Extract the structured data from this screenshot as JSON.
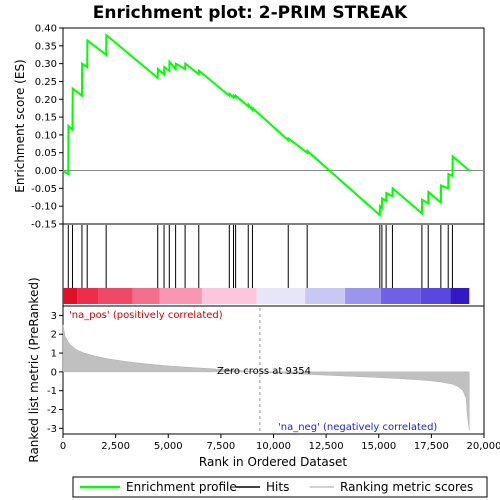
{
  "chart_data": {
    "type": "line",
    "title": "Enrichment plot: 2-PRIM STREAK",
    "es_panel": {
      "ylabel": "Enrichment score (ES)",
      "ylim": [
        -0.15,
        0.4
      ],
      "yticks": [
        "0.40",
        "0.35",
        "0.30",
        "0.25",
        "0.20",
        "0.15",
        "0.10",
        "0.05",
        "0.00",
        "-0.05",
        "-0.10",
        "-0.15"
      ],
      "ytick_values": [
        0.4,
        0.35,
        0.3,
        0.25,
        0.2,
        0.15,
        0.1,
        0.05,
        0.0,
        -0.05,
        -0.1,
        -0.15
      ],
      "line_color": "#00ff00",
      "series": [
        {
          "name": "Enrichment profile",
          "x": [
            0,
            250,
            260,
            450,
            460,
            900,
            910,
            1150,
            1160,
            2050,
            2060,
            4500,
            4510,
            4800,
            4810,
            5050,
            5060,
            5350,
            5360,
            5800,
            5810,
            6450,
            6460,
            7900,
            7910,
            8100,
            8110,
            8200,
            8210,
            8800,
            8810,
            9000,
            9010,
            10700,
            10710,
            11600,
            11610,
            15050,
            15060,
            15150,
            15160,
            15350,
            15360,
            15650,
            15660,
            17050,
            17060,
            17350,
            17360,
            17950,
            17960,
            18300,
            18310,
            18500,
            18510,
            19300
          ],
          "y": [
            0.0,
            -0.01,
            0.125,
            0.115,
            0.23,
            0.21,
            0.3,
            0.29,
            0.365,
            0.325,
            0.38,
            0.26,
            0.285,
            0.27,
            0.29,
            0.28,
            0.305,
            0.285,
            0.3,
            0.285,
            0.3,
            0.27,
            0.28,
            0.21,
            0.215,
            0.205,
            0.21,
            0.205,
            0.21,
            0.18,
            0.185,
            0.17,
            0.175,
            0.085,
            0.09,
            0.05,
            0.055,
            -0.125,
            -0.1,
            -0.105,
            -0.078,
            -0.085,
            -0.063,
            -0.072,
            -0.05,
            -0.12,
            -0.082,
            -0.092,
            -0.06,
            -0.09,
            -0.042,
            -0.05,
            -0.01,
            -0.015,
            0.04,
            0.0
          ]
        }
      ]
    },
    "hits": [
      250,
      450,
      900,
      1150,
      2050,
      4500,
      4800,
      5050,
      5350,
      5800,
      6450,
      7900,
      8100,
      8200,
      8800,
      9000,
      10700,
      11600,
      15050,
      15150,
      15350,
      15650,
      17050,
      17350,
      17950,
      18300,
      18500
    ],
    "metric_panel": {
      "ylabel": "Ranked list metric (PreRanked)",
      "ylim": [
        -3.3,
        3.5
      ],
      "yticks": [
        "3",
        "2",
        "1",
        "0",
        "-1",
        "-2",
        "-3"
      ],
      "ytick_values": [
        3,
        2,
        1,
        0,
        -1,
        -2,
        -3
      ],
      "fill_color": "#c0c0c0",
      "profile": {
        "x": [
          0,
          100,
          300,
          600,
          1000,
          1500,
          2000,
          3000,
          4000,
          5000,
          6000,
          7000,
          8000,
          9000,
          9354,
          10000,
          11000,
          12000,
          13000,
          14000,
          15000,
          16000,
          17000,
          17500,
          18000,
          18500,
          18800,
          19000,
          19150,
          19200,
          19300
        ],
        "y": [
          2.5,
          1.9,
          1.5,
          1.2,
          1.0,
          0.85,
          0.72,
          0.55,
          0.42,
          0.32,
          0.24,
          0.17,
          0.1,
          0.03,
          0.0,
          -0.05,
          -0.1,
          -0.15,
          -0.2,
          -0.25,
          -0.3,
          -0.36,
          -0.43,
          -0.48,
          -0.55,
          -0.65,
          -0.8,
          -1.0,
          -1.4,
          -2.2,
          -3.1
        ]
      },
      "zero_cross_label": "Zero cross at 9354",
      "zero_cross_x": 9354,
      "pos_label": "'na_pos' (positively correlated)",
      "neg_label": "'na_neg' (negatively correlated)"
    },
    "xaxis": {
      "label": "Rank in Ordered Dataset",
      "xlim": [
        0,
        20000
      ],
      "ticks": [
        "0",
        "2,500",
        "5,000",
        "7,500",
        "10,000",
        "12,500",
        "15,000",
        "17,500",
        "20,000"
      ],
      "tick_values": [
        0,
        2500,
        5000,
        7500,
        10000,
        12500,
        15000,
        17500,
        20000
      ],
      "data_max": 19300
    },
    "colorbar": [
      {
        "from": 0,
        "to": 700,
        "color": "#e0102a"
      },
      {
        "from": 700,
        "to": 1700,
        "color": "#ec2e4a"
      },
      {
        "from": 1700,
        "to": 3300,
        "color": "#f04868"
      },
      {
        "from": 3300,
        "to": 4600,
        "color": "#f46f8d"
      },
      {
        "from": 4600,
        "to": 6600,
        "color": "#fa96b4"
      },
      {
        "from": 6600,
        "to": 9200,
        "color": "#fcc6dc"
      },
      {
        "from": 9200,
        "to": 11500,
        "color": "#e6e6f8"
      },
      {
        "from": 11500,
        "to": 13400,
        "color": "#c8c8f4"
      },
      {
        "from": 13400,
        "to": 15100,
        "color": "#9a96ee"
      },
      {
        "from": 15100,
        "to": 17000,
        "color": "#7060e6"
      },
      {
        "from": 17000,
        "to": 18400,
        "color": "#5a48de"
      },
      {
        "from": 18400,
        "to": 19300,
        "color": "#3418c4"
      }
    ],
    "legend": [
      {
        "label": "Enrichment profile",
        "color": "#00ff00",
        "style": "line"
      },
      {
        "label": "Hits",
        "color": "#000000",
        "style": "line"
      },
      {
        "label": "Ranking metric scores",
        "color": "#c0c0c0",
        "style": "line"
      }
    ]
  }
}
